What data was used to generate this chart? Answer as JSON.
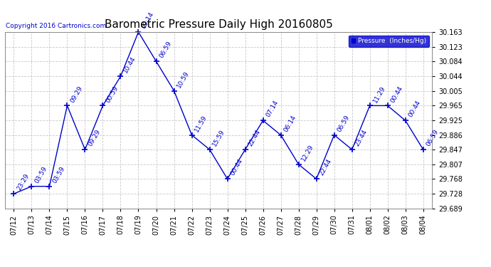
{
  "title": "Barometric Pressure Daily High 20160805",
  "copyright_text": "Copyright 2016 Cartronics.com",
  "legend_label": "Pressure  (Inches/Hg)",
  "background_color": "#ffffff",
  "plot_bg_color": "#ffffff",
  "line_color": "#0000cc",
  "text_color": "#0000cc",
  "grid_color": "#bbbbbb",
  "dates": [
    "07/12",
    "07/13",
    "07/14",
    "07/15",
    "07/16",
    "07/17",
    "07/18",
    "07/19",
    "07/20",
    "07/21",
    "07/22",
    "07/23",
    "07/24",
    "07/25",
    "07/26",
    "07/27",
    "07/28",
    "07/29",
    "07/30",
    "07/31",
    "08/01",
    "08/02",
    "08/03",
    "08/04"
  ],
  "values": [
    29.728,
    29.748,
    29.748,
    29.965,
    29.847,
    29.965,
    30.044,
    30.163,
    30.084,
    30.005,
    29.886,
    29.847,
    29.768,
    29.847,
    29.925,
    29.886,
    29.807,
    29.768,
    29.886,
    29.847,
    29.965,
    29.965,
    29.925,
    29.847
  ],
  "time_labels": [
    "23:29",
    "03:59",
    "03:59",
    "09:29",
    "09:29",
    "00:59",
    "10:44",
    "09:14",
    "06:59",
    "10:59",
    "11:59",
    "15:59",
    "00:44",
    "22:44",
    "07:14",
    "06:14",
    "12:29",
    "22:44",
    "06:59",
    "23:44",
    "11:29",
    "00:44",
    "00:44",
    "06:59"
  ],
  "ylim": [
    29.689,
    30.163
  ],
  "yticks": [
    29.689,
    29.728,
    29.768,
    29.807,
    29.847,
    29.886,
    29.925,
    29.965,
    30.005,
    30.044,
    30.084,
    30.123,
    30.163
  ],
  "marker": "+",
  "marker_size": 6,
  "line_width": 1.0,
  "title_fontsize": 11,
  "label_fontsize": 6.5,
  "tick_fontsize": 7,
  "copyright_fontsize": 6.5
}
